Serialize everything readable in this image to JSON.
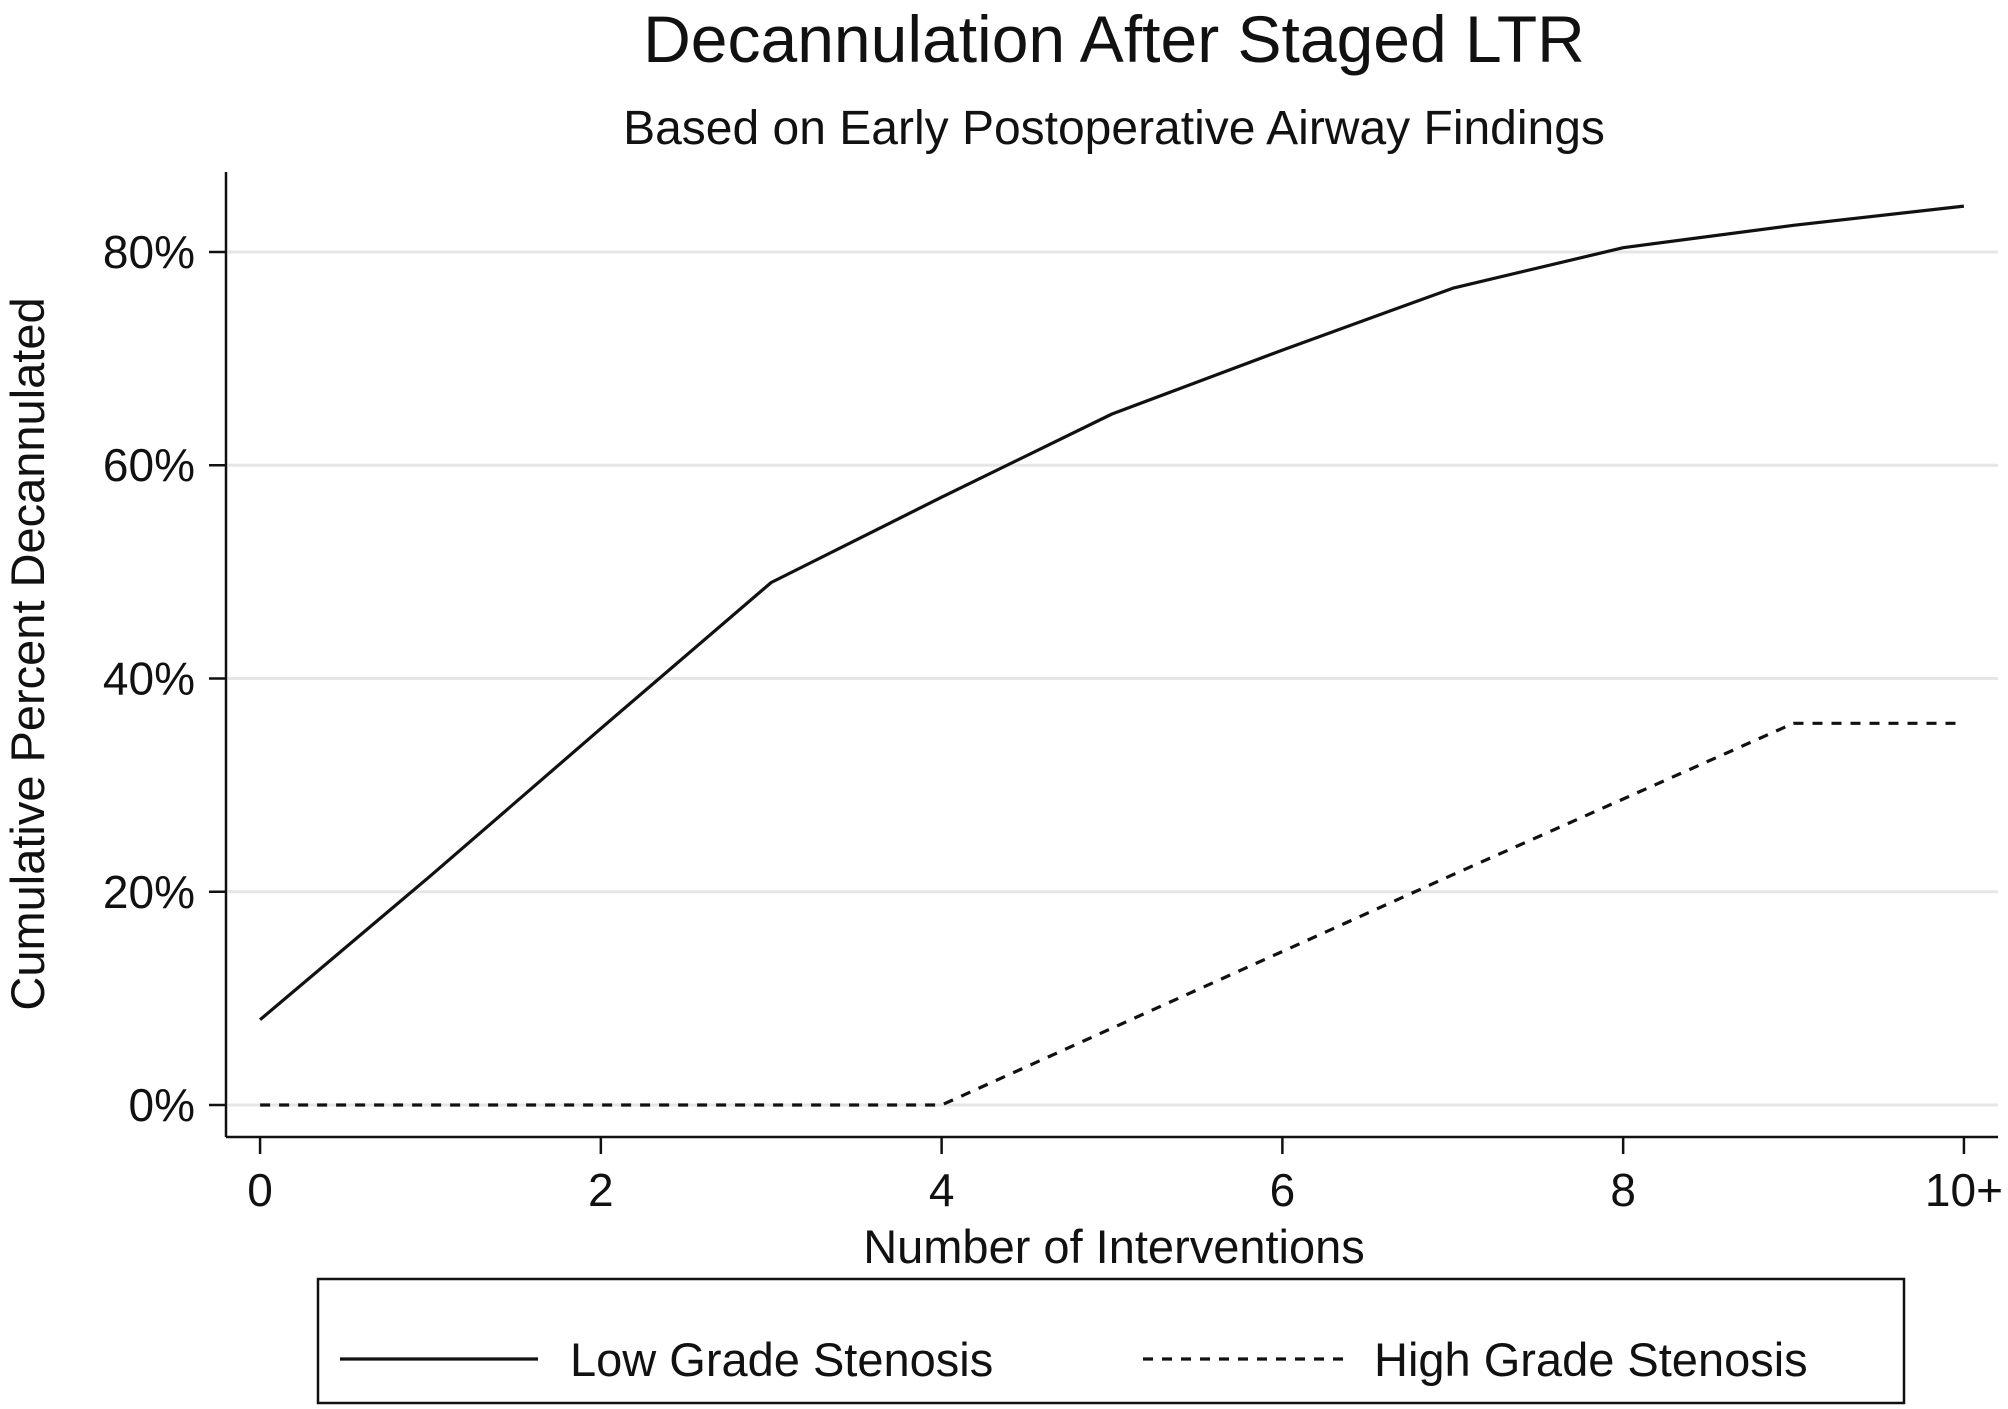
{
  "chart_data": {
    "type": "line",
    "title": "Decannulation After Staged LTR",
    "subtitle": "Based on Early Postoperative Airway Findings",
    "xlabel": "Number of Interventions",
    "ylabel": "Cumulative Percent Decannulated",
    "x": [
      0,
      1,
      2,
      3,
      4,
      5,
      6,
      7,
      8,
      9,
      10
    ],
    "x_ticks": [
      0,
      2,
      4,
      6,
      8,
      10
    ],
    "x_tick_labels": [
      "0",
      "2",
      "4",
      "6",
      "8",
      "10+"
    ],
    "y_ticks": [
      0,
      20,
      40,
      60,
      80
    ],
    "y_tick_labels": [
      "0%",
      "20%",
      "40%",
      "60%",
      "80%"
    ],
    "xlim": [
      -0.2,
      10.2
    ],
    "ylim": [
      -3,
      87.5
    ],
    "grid": true,
    "legend_position": "bottom",
    "series": [
      {
        "name": "Low Grade Stenosis",
        "style": "solid",
        "color": "#111111",
        "values": [
          8,
          21.5,
          35.3,
          49,
          57,
          64.8,
          70.8,
          76.6,
          80.4,
          82.5,
          84.3
        ]
      },
      {
        "name": "High Grade Stenosis",
        "style": "dashed",
        "color": "#111111",
        "values": [
          0,
          0,
          0,
          0,
          0,
          7.2,
          14.4,
          21.6,
          28.7,
          35.8,
          35.8
        ]
      }
    ]
  }
}
